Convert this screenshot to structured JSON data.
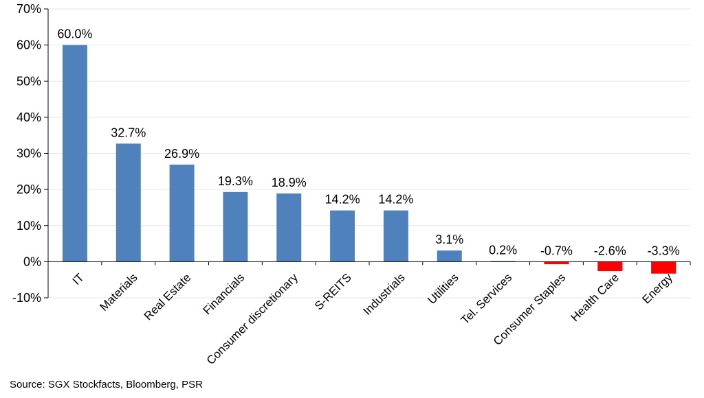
{
  "chart_data": {
    "type": "bar",
    "categories": [
      "IT",
      "Materials",
      "Real Estate",
      "Financials",
      "Consumer discretionary",
      "S-REITS",
      "Industrials",
      "Utilities",
      "Tel. Services",
      "Consumer Staples",
      "Health Care",
      "Energy"
    ],
    "values": [
      60.0,
      32.7,
      26.9,
      19.3,
      18.9,
      14.2,
      14.2,
      3.1,
      0.2,
      -0.7,
      -2.6,
      -3.3
    ],
    "data_labels": [
      "60.0%",
      "32.7%",
      "26.9%",
      "19.3%",
      "18.9%",
      "14.2%",
      "14.2%",
      "3.1%",
      "0.2%",
      "-0.7%",
      "-2.6%",
      "-3.3%"
    ],
    "ylim": [
      -10,
      70
    ],
    "yticks": [
      -10,
      0,
      10,
      20,
      30,
      40,
      50,
      60,
      70
    ],
    "ytick_labels": [
      "-10%",
      "0%",
      "10%",
      "20%",
      "30%",
      "40%",
      "50%",
      "60%",
      "70%"
    ],
    "title": "",
    "xlabel": "",
    "ylabel": "",
    "grid": true,
    "colors": {
      "positive": "#4f81bd",
      "negative": "#ff0000",
      "grid": "#e6e6e6",
      "axis": "#000000"
    }
  },
  "source": "Source: SGX Stockfacts, Bloomberg, PSR"
}
